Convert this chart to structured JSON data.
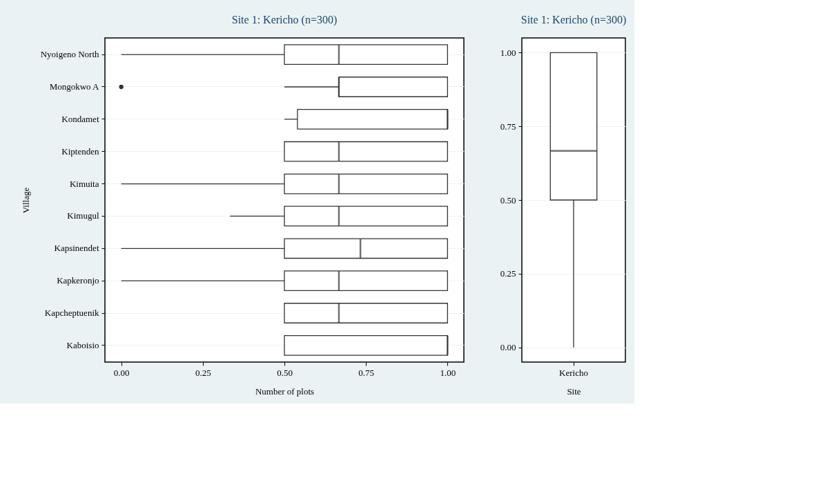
{
  "chart_data": [
    {
      "type": "box",
      "title": "Site 1: Kericho (n=300)",
      "orientation": "horizontal",
      "xlabel": "Number of plots",
      "ylabel": "Village",
      "grid": "y",
      "categories": [
        "Nyoigeno North",
        "Mongokwo A",
        "Kondamet",
        "Kiptenden",
        "Kimuita",
        "Kimugul",
        "Kapsinendet",
        "Kapkeronjo",
        "Kapcheptuenik",
        "Kaboisio"
      ],
      "boxes": [
        {
          "low": 0,
          "q1": 0.5,
          "median": 0.667,
          "q3": 1,
          "high": 1
        },
        {
          "low": 0.5,
          "q1": 0.667,
          "median": 0.667,
          "q3": 1,
          "high": 1,
          "outliers": [
            0
          ]
        },
        {
          "low": 0.5,
          "q1": 0.54,
          "median": 1,
          "q3": 1,
          "high": 1
        },
        {
          "low": 0.5,
          "q1": 0.5,
          "median": 0.667,
          "q3": 1,
          "high": 1
        },
        {
          "low": 0,
          "q1": 0.5,
          "median": 0.667,
          "q3": 1,
          "high": 1
        },
        {
          "low": 0.333,
          "q1": 0.5,
          "median": 0.667,
          "q3": 1,
          "high": 1
        },
        {
          "low": 0,
          "q1": 0.5,
          "median": 0.733,
          "q3": 1,
          "high": 1
        },
        {
          "low": 0,
          "q1": 0.5,
          "median": 0.667,
          "q3": 1,
          "high": 1
        },
        {
          "low": 0.5,
          "q1": 0.5,
          "median": 0.667,
          "q3": 1,
          "high": 1
        },
        {
          "low": 0.5,
          "q1": 0.5,
          "median": 1,
          "q3": 1,
          "high": 1
        }
      ],
      "xlim": [
        -0.05,
        1.05
      ],
      "xticks": [
        {
          "value": 0,
          "label": "0.00"
        },
        {
          "value": 0.25,
          "label": "0.25"
        },
        {
          "value": 0.5,
          "label": "0.50"
        },
        {
          "value": 0.75,
          "label": "0.75"
        },
        {
          "value": 1,
          "label": "1.00"
        }
      ]
    },
    {
      "type": "box",
      "title": "Site 1: Kericho (n=300)",
      "xlabel": "Site",
      "grid": "y",
      "categories": [
        "Kericho"
      ],
      "boxes": [
        {
          "low": 0,
          "q1": 0.5,
          "median": 0.667,
          "q3": 1,
          "high": 1
        }
      ],
      "ylim": [
        -0.05,
        1.05
      ],
      "yticks": [
        {
          "value": 0,
          "label": "0.00"
        },
        {
          "value": 0.25,
          "label": "0.25"
        },
        {
          "value": 0.5,
          "label": "0.50"
        },
        {
          "value": 0.75,
          "label": "0.75"
        },
        {
          "value": 1,
          "label": "1.00"
        }
      ]
    }
  ]
}
